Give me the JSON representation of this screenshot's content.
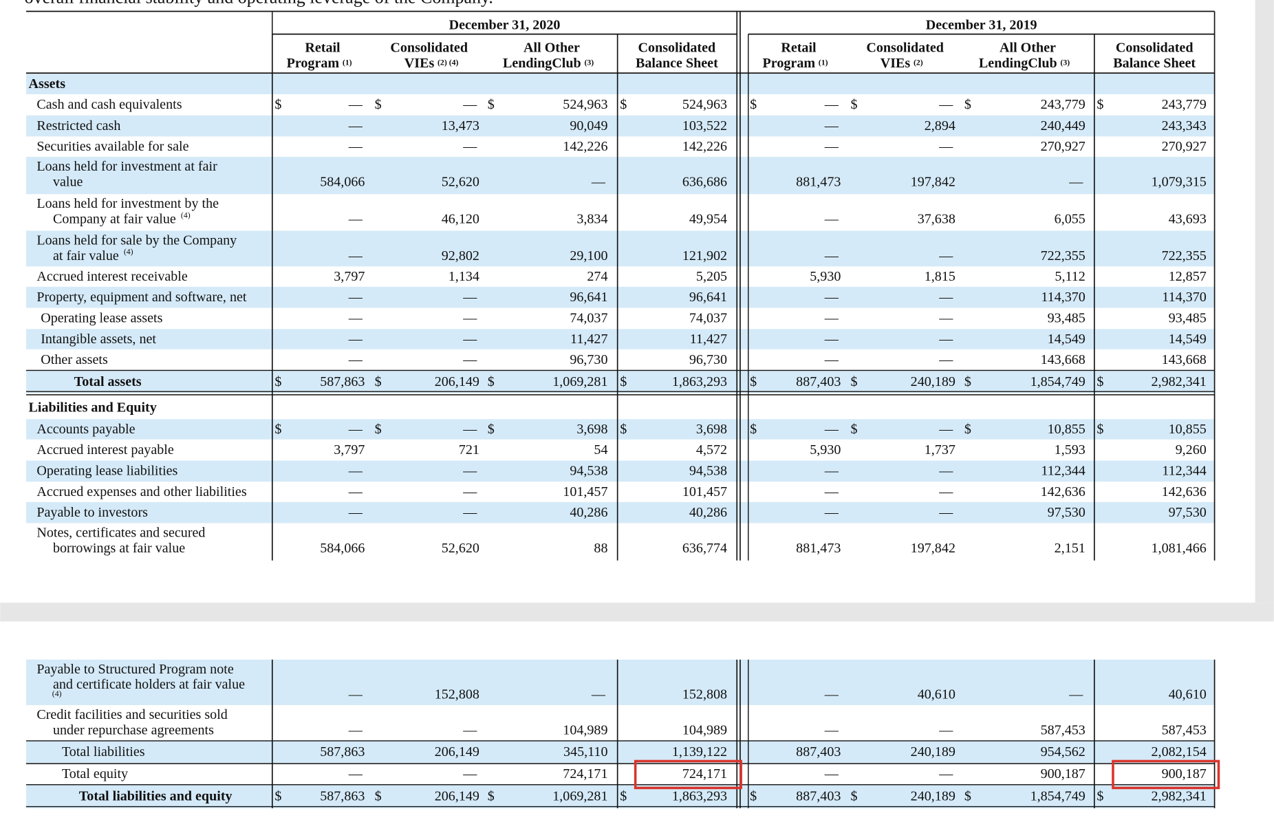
{
  "intro_text": "overall financial stability and operating leverage of the Company.",
  "currency": "$",
  "periods": [
    "December 31, 2020",
    "December 31, 2019"
  ],
  "columns": [
    {
      "lines": [
        "Retail",
        "Program"
      ],
      "note": "(1)"
    },
    {
      "lines": [
        "Consolidated",
        "VIEs"
      ],
      "note": "(2) (4)"
    },
    {
      "lines": [
        "All Other",
        "LendingClub"
      ],
      "note": "(3)"
    },
    {
      "lines": [
        "Consolidated",
        "Balance Sheet"
      ]
    },
    {
      "lines": [
        "Retail",
        "Program"
      ],
      "note": "(1)"
    },
    {
      "lines": [
        "Consolidated",
        "VIEs"
      ],
      "note": "(2)"
    },
    {
      "lines": [
        "All Other",
        "LendingClub"
      ],
      "note": "(3)"
    },
    {
      "lines": [
        "Consolidated",
        "Balance Sheet"
      ]
    }
  ],
  "rows": [
    {
      "kind": "section",
      "label": [
        "Assets"
      ]
    },
    {
      "kind": "item",
      "currency_row": true,
      "label": [
        "Cash and cash equivalents"
      ],
      "values": [
        "—",
        "—",
        "524,963",
        "524,963",
        "—",
        "—",
        "243,779",
        "243,779"
      ]
    },
    {
      "kind": "item",
      "label": [
        "Restricted cash"
      ],
      "values": [
        "—",
        "13,473",
        "90,049",
        "103,522",
        "—",
        "2,894",
        "240,449",
        "243,343"
      ]
    },
    {
      "kind": "item",
      "label": [
        "Securities available for sale"
      ],
      "values": [
        "—",
        "—",
        "142,226",
        "142,226",
        "—",
        "—",
        "270,927",
        "270,927"
      ]
    },
    {
      "kind": "item",
      "label": [
        "Loans held for investment at fair",
        "value"
      ],
      "values": [
        "584,066",
        "52,620",
        "—",
        "636,686",
        "881,473",
        "197,842",
        "—",
        "1,079,315"
      ]
    },
    {
      "kind": "item",
      "label": [
        "Loans held for investment by the",
        "Company at fair value"
      ],
      "note": "(4)",
      "values": [
        "—",
        "46,120",
        "3,834",
        "49,954",
        "—",
        "37,638",
        "6,055",
        "43,693"
      ]
    },
    {
      "kind": "item",
      "label": [
        "Loans held for sale by the Company",
        "at fair value"
      ],
      "note": "(4)",
      "values": [
        "—",
        "92,802",
        "29,100",
        "121,902",
        "—",
        "—",
        "722,355",
        "722,355"
      ]
    },
    {
      "kind": "item",
      "label": [
        "Accrued interest receivable"
      ],
      "values": [
        "3,797",
        "1,134",
        "274",
        "5,205",
        "5,930",
        "1,815",
        "5,112",
        "12,857"
      ]
    },
    {
      "kind": "item",
      "label": [
        "Property, equipment and software, net"
      ],
      "values": [
        "—",
        "—",
        "96,641",
        "96,641",
        "—",
        "—",
        "114,370",
        "114,370"
      ]
    },
    {
      "kind": "item",
      "label": [
        "Operating lease assets"
      ],
      "values": [
        "—",
        "—",
        "74,037",
        "74,037",
        "—",
        "—",
        "93,485",
        "93,485"
      ]
    },
    {
      "kind": "item",
      "label": [
        "Intangible assets, net"
      ],
      "values": [
        "—",
        "—",
        "11,427",
        "11,427",
        "—",
        "—",
        "14,549",
        "14,549"
      ]
    },
    {
      "kind": "item",
      "label": [
        "Other assets"
      ],
      "values": [
        "—",
        "—",
        "96,730",
        "96,730",
        "—",
        "—",
        "143,668",
        "143,668"
      ]
    },
    {
      "kind": "total",
      "currency_row": true,
      "label": [
        "Total assets"
      ],
      "values": [
        "587,863",
        "206,149",
        "1,069,281",
        "1,863,293",
        "887,403",
        "240,189",
        "1,854,749",
        "2,982,341"
      ]
    },
    {
      "kind": "section",
      "label": [
        "Liabilities and Equity"
      ]
    },
    {
      "kind": "item",
      "currency_row": true,
      "label": [
        "Accounts payable"
      ],
      "values": [
        "—",
        "—",
        "3,698",
        "3,698",
        "—",
        "—",
        "10,855",
        "10,855"
      ]
    },
    {
      "kind": "item",
      "label": [
        "Accrued interest payable"
      ],
      "values": [
        "3,797",
        "721",
        "54",
        "4,572",
        "5,930",
        "1,737",
        "1,593",
        "9,260"
      ]
    },
    {
      "kind": "item",
      "label": [
        "Operating lease liabilities"
      ],
      "values": [
        "—",
        "—",
        "94,538",
        "94,538",
        "—",
        "—",
        "112,344",
        "112,344"
      ]
    },
    {
      "kind": "item",
      "label": [
        "Accrued expenses and other liabilities"
      ],
      "values": [
        "—",
        "—",
        "101,457",
        "101,457",
        "—",
        "—",
        "142,636",
        "142,636"
      ]
    },
    {
      "kind": "item",
      "label": [
        "Payable to investors"
      ],
      "values": [
        "—",
        "—",
        "40,286",
        "40,286",
        "—",
        "—",
        "97,530",
        "97,530"
      ]
    },
    {
      "kind": "item",
      "label": [
        "Notes, certificates and secured",
        "borrowings at fair value"
      ],
      "values": [
        "584,066",
        "52,620",
        "88",
        "636,774",
        "881,473",
        "197,842",
        "2,151",
        "1,081,466"
      ]
    },
    {
      "kind": "item",
      "label": [
        "Payable to Structured Program note",
        "and certificate holders at fair value"
      ],
      "note": "(4)",
      "values": [
        "—",
        "152,808",
        "—",
        "152,808",
        "—",
        "40,610",
        "—",
        "40,610"
      ]
    },
    {
      "kind": "item",
      "label": [
        "Credit facilities and securities sold",
        "under repurchase agreements"
      ],
      "values": [
        "—",
        "—",
        "104,989",
        "104,989",
        "—",
        "—",
        "587,453",
        "587,453"
      ]
    },
    {
      "kind": "subtotal",
      "label": [
        "Total liabilities"
      ],
      "values": [
        "587,863",
        "206,149",
        "345,110",
        "1,139,122",
        "887,403",
        "240,189",
        "954,562",
        "2,082,154"
      ]
    },
    {
      "kind": "subtotal",
      "label": [
        "Total equity"
      ],
      "values": [
        "—",
        "—",
        "724,171",
        "724,171",
        "—",
        "—",
        "900,187",
        "900,187"
      ]
    },
    {
      "kind": "total",
      "currency_row": true,
      "label": [
        "Total liabilities and equity"
      ],
      "values": [
        "587,863",
        "206,149",
        "1,069,281",
        "1,863,293",
        "887,403",
        "240,189",
        "1,854,749",
        "2,982,341"
      ]
    }
  ]
}
